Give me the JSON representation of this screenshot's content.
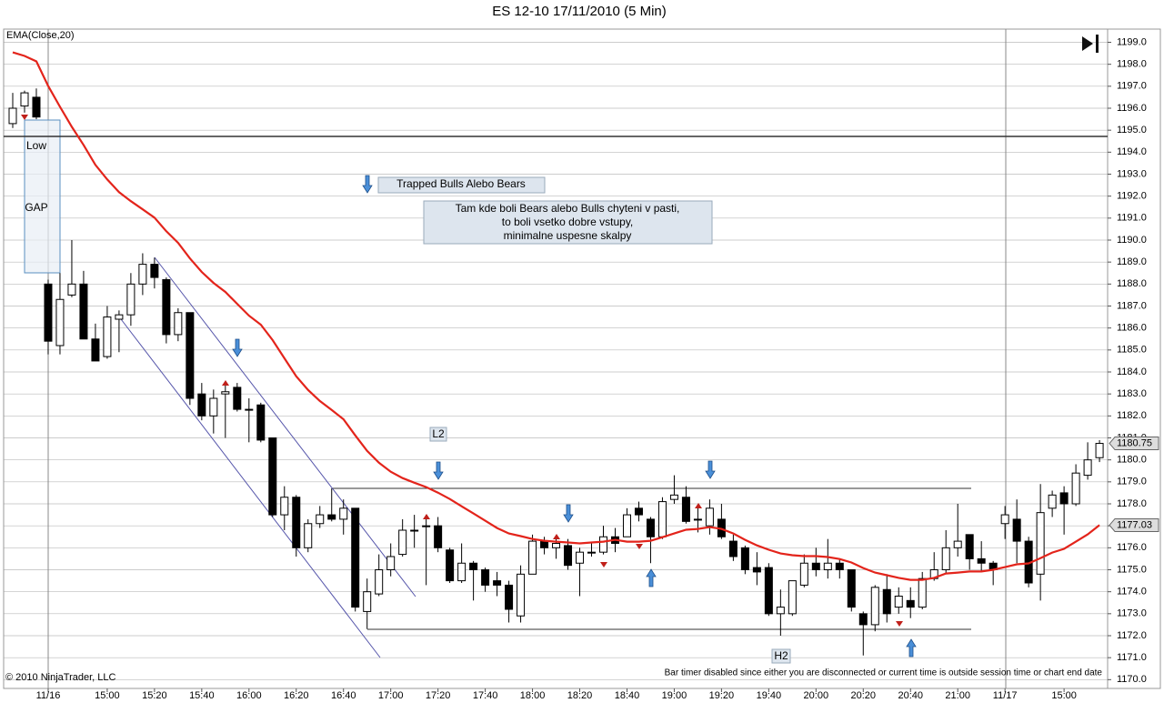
{
  "chart_data": {
    "type": "candlestick",
    "title": "ES 12-10  17/11/2010 (5 Min)",
    "categories": [
      null,
      null,
      null,
      "11/16",
      null,
      null,
      null,
      null,
      "15:00",
      null,
      null,
      null,
      "15:20",
      null,
      null,
      null,
      "15:40",
      null,
      null,
      null,
      "16:00",
      null,
      null,
      null,
      "16:20",
      null,
      null,
      null,
      "16:40",
      null,
      null,
      null,
      "17:00",
      null,
      null,
      null,
      "17:20",
      null,
      null,
      null,
      "17:40",
      null,
      null,
      null,
      "18:00",
      null,
      null,
      null,
      "18:20",
      null,
      null,
      null,
      "18:40",
      null,
      null,
      null,
      "19:00",
      null,
      null,
      null,
      "19:20",
      null,
      null,
      null,
      "19:40",
      null,
      null,
      null,
      "20:00",
      null,
      null,
      null,
      "20:20",
      null,
      null,
      null,
      "20:40",
      null,
      null,
      null,
      "21:00",
      null,
      null,
      null,
      "11/17",
      null,
      null,
      null,
      null,
      "15:00",
      null,
      null,
      null
    ],
    "open": [
      1195.3,
      1196.1,
      1196.5,
      1188.0,
      1185.2,
      1187.5,
      1188.0,
      1185.5,
      1184.7,
      1186.4,
      1186.6,
      1188.0,
      1188.9,
      1188.2,
      1185.7,
      1186.7,
      1183.0,
      1182.0,
      1183.0,
      1183.3,
      1182.3,
      1182.5,
      1181.0,
      1177.5,
      1178.3,
      1176.0,
      1177.1,
      1177.5,
      1177.3,
      1177.8,
      1173.1,
      1173.9,
      1175.0,
      1175.7,
      1176.8,
      1177.0,
      1177.0,
      1175.9,
      1174.5,
      1175.3,
      1175.0,
      1174.5,
      1174.3,
      1172.9,
      1174.8,
      1176.3,
      1176.0,
      1176.1,
      1175.3,
      1175.8,
      1175.8,
      1176.5,
      1176.5,
      1177.8,
      1177.3,
      1176.5,
      1178.2,
      1178.3,
      1177.3,
      1177.0,
      1177.3,
      1176.3,
      1176.0,
      1175.1,
      1175.1,
      1173.0,
      1173.0,
      1174.3,
      1175.3,
      1175.0,
      1175.3,
      1175.0,
      1173.0,
      1172.5,
      1174.1,
      1173.3,
      1173.6,
      1173.3,
      1174.6,
      1175.0,
      1176.0,
      1176.6,
      1175.5,
      1175.3,
      1177.1,
      1177.3,
      1176.3,
      1174.8,
      1177.8,
      1178.5,
      1178.0,
      1179.3,
      1180.1
    ],
    "high": [
      1196.7,
      1196.8,
      1196.9,
      1188.2,
      1188.5,
      1190.0,
      1188.6,
      1186.2,
      1187.0,
      1186.8,
      1188.5,
      1189.4,
      1189.2,
      1188.3,
      1186.9,
      1186.7,
      1183.5,
      1183.2,
      1183.4,
      1183.5,
      1182.8,
      1182.6,
      1181.0,
      1178.8,
      1178.4,
      1177.3,
      1177.9,
      1178.7,
      1178.2,
      1177.8,
      1174.6,
      1175.7,
      1176.2,
      1177.3,
      1177.5,
      1177.5,
      1177.4,
      1176.0,
      1176.2,
      1175.4,
      1175.1,
      1174.9,
      1174.5,
      1175.2,
      1176.6,
      1176.5,
      1176.5,
      1176.4,
      1176.0,
      1176.2,
      1177.0,
      1176.9,
      1177.8,
      1178.1,
      1177.4,
      1178.3,
      1179.3,
      1178.8,
      1177.8,
      1178.2,
      1178.0,
      1176.6,
      1176.1,
      1175.8,
      1175.3,
      1174.1,
      1174.5,
      1175.7,
      1176.0,
      1176.4,
      1175.5,
      1175.0,
      1173.1,
      1174.3,
      1174.8,
      1174.2,
      1174.2,
      1174.9,
      1175.8,
      1176.8,
      1178.0,
      1176.6,
      1176.3,
      1175.4,
      1177.9,
      1178.2,
      1176.5,
      1178.9,
      1178.6,
      1178.8,
      1179.8,
      1180.8,
      1180.9
    ],
    "low": [
      1195.1,
      1195.8,
      1195.5,
      1184.8,
      1184.8,
      1187.4,
      1185.5,
      1184.5,
      1184.6,
      1184.9,
      1186.1,
      1187.5,
      1187.8,
      1185.3,
      1185.4,
      1182.5,
      1181.8,
      1181.2,
      1181.0,
      1182.2,
      1180.8,
      1180.8,
      1177.4,
      1176.8,
      1175.6,
      1175.8,
      1176.9,
      1177.2,
      1176.6,
      1173.1,
      1172.3,
      1173.8,
      1174.7,
      1175.6,
      1176.0,
      1174.3,
      1175.8,
      1174.4,
      1174.4,
      1173.6,
      1174.0,
      1173.8,
      1172.6,
      1172.6,
      1174.8,
      1175.7,
      1175.5,
      1175.0,
      1173.8,
      1175.6,
      1175.7,
      1175.8,
      1176.5,
      1177.2,
      1175.3,
      1176.4,
      1178.0,
      1177.1,
      1176.7,
      1176.6,
      1176.4,
      1175.4,
      1174.8,
      1174.3,
      1172.9,
      1172.0,
      1172.9,
      1174.2,
      1174.7,
      1174.6,
      1174.6,
      1173.1,
      1171.1,
      1172.2,
      1172.6,
      1173.0,
      1172.8,
      1173.2,
      1174.5,
      1174.8,
      1175.6,
      1175.0,
      1174.9,
      1174.3,
      1176.4,
      1175.3,
      1174.2,
      1173.6,
      1177.4,
      1176.6,
      1177.9,
      1179.1,
      1179.9
    ],
    "close": [
      1196.0,
      1196.7,
      1195.6,
      1185.4,
      1187.3,
      1188.0,
      1185.5,
      1184.5,
      1186.5,
      1186.6,
      1188.0,
      1188.9,
      1188.3,
      1185.7,
      1186.7,
      1182.8,
      1182.0,
      1182.8,
      1183.1,
      1182.3,
      1182.3,
      1180.9,
      1177.5,
      1178.3,
      1176.0,
      1177.1,
      1177.5,
      1177.3,
      1177.8,
      1173.3,
      1174.0,
      1175.0,
      1175.6,
      1176.8,
      1176.8,
      1177.0,
      1176.0,
      1174.5,
      1175.3,
      1175.0,
      1174.3,
      1174.3,
      1173.2,
      1174.8,
      1176.3,
      1176.0,
      1176.2,
      1175.2,
      1175.8,
      1175.8,
      1176.5,
      1176.2,
      1177.5,
      1177.5,
      1176.5,
      1178.1,
      1178.4,
      1177.2,
      1177.3,
      1177.8,
      1176.5,
      1175.6,
      1175.0,
      1174.9,
      1173.0,
      1173.3,
      1174.5,
      1175.3,
      1175.0,
      1175.3,
      1175.0,
      1173.3,
      1172.5,
      1174.2,
      1173.0,
      1173.8,
      1173.3,
      1174.6,
      1175.0,
      1176.0,
      1176.3,
      1175.5,
      1175.3,
      1175.0,
      1177.5,
      1176.3,
      1174.4,
      1177.6,
      1178.4,
      1178.0,
      1179.4,
      1180.0,
      1180.75
    ],
    "up_color": "#ffffff",
    "down_color": "#000000",
    "ema": {
      "name": "EMA(Close,20)",
      "color": "#e3241b",
      "values": [
        1198.54,
        1198.38,
        1198.13,
        1197.01,
        1196.06,
        1195.15,
        1194.33,
        1193.42,
        1192.76,
        1192.18,
        1191.77,
        1191.4,
        1191.02,
        1190.4,
        1189.87,
        1189.17,
        1188.55,
        1188.05,
        1187.64,
        1187.1,
        1186.56,
        1186.15,
        1185.45,
        1184.62,
        1183.8,
        1183.18,
        1182.68,
        1182.27,
        1181.85,
        1181.11,
        1180.41,
        1179.87,
        1179.46,
        1179.17,
        1178.96,
        1178.76,
        1178.51,
        1178.22,
        1177.89,
        1177.56,
        1177.23,
        1176.9,
        1176.65,
        1176.53,
        1176.4,
        1176.32,
        1176.28,
        1176.24,
        1176.2,
        1176.24,
        1176.28,
        1176.36,
        1176.28,
        1176.28,
        1176.32,
        1176.48,
        1176.65,
        1176.82,
        1176.86,
        1176.94,
        1176.86,
        1176.65,
        1176.36,
        1176.11,
        1175.91,
        1175.74,
        1175.66,
        1175.62,
        1175.62,
        1175.58,
        1175.49,
        1175.33,
        1175.08,
        1174.87,
        1174.75,
        1174.63,
        1174.54,
        1174.54,
        1174.63,
        1174.83,
        1174.87,
        1174.92,
        1174.92,
        1175.0,
        1175.12,
        1175.25,
        1175.29,
        1175.53,
        1175.78,
        1175.95,
        1176.28,
        1176.61,
        1177.03
      ]
    },
    "ylim": [
      1169.6,
      1199.6
    ],
    "yticks": [
      {
        "value": 1170,
        "label": "1170.0"
      },
      {
        "value": 1171,
        "label": "1171.0"
      },
      {
        "value": 1172,
        "label": "1172.0"
      },
      {
        "value": 1173,
        "label": "1173.0"
      },
      {
        "value": 1174,
        "label": "1174.0"
      },
      {
        "value": 1175,
        "label": "1175.0"
      },
      {
        "value": 1176,
        "label": "1176.0"
      },
      {
        "value": 1177,
        "label": "1177.0"
      },
      {
        "value": 1178,
        "label": "1178.0"
      },
      {
        "value": 1179,
        "label": "1179.0"
      },
      {
        "value": 1180,
        "label": "1180.0"
      },
      {
        "value": 1181,
        "label": "1181.0"
      },
      {
        "value": 1182,
        "label": "1182.0"
      },
      {
        "value": 1183,
        "label": "1183.0"
      },
      {
        "value": 1184,
        "label": "1184.0"
      },
      {
        "value": 1185,
        "label": "1185.0"
      },
      {
        "value": 1186,
        "label": "1186.0"
      },
      {
        "value": 1187,
        "label": "1187.0"
      },
      {
        "value": 1188,
        "label": "1188.0"
      },
      {
        "value": 1189,
        "label": "1189.0"
      },
      {
        "value": 1190,
        "label": "1190.0"
      },
      {
        "value": 1191,
        "label": "1191.0"
      },
      {
        "value": 1192,
        "label": "1192.0"
      },
      {
        "value": 1193,
        "label": "1193.0"
      },
      {
        "value": 1194,
        "label": "1194.0"
      },
      {
        "value": 1195,
        "label": "1195.0"
      },
      {
        "value": 1196,
        "label": "1196.0"
      },
      {
        "value": 1197,
        "label": "1197.0"
      },
      {
        "value": 1198,
        "label": "1198.0"
      },
      {
        "value": 1199,
        "label": "1199.0"
      }
    ],
    "grid": true,
    "annotations": {
      "low": "Low",
      "gap": "GAP",
      "trapped": "Trapped Bulls Alebo Bears",
      "note": [
        "Tam kde boli Bears alebo Bulls chyteni v pasti,",
        "to boli vsetko dobre vstupy,",
        "minimalne uspesne skalpy"
      ],
      "l2": "L2",
      "h2": "H2"
    },
    "copyright": "© 2010 NinjaTrader, LLC",
    "status": "Bar timer disabled since either you are disconnected or current time is outside session time or chart end date"
  }
}
